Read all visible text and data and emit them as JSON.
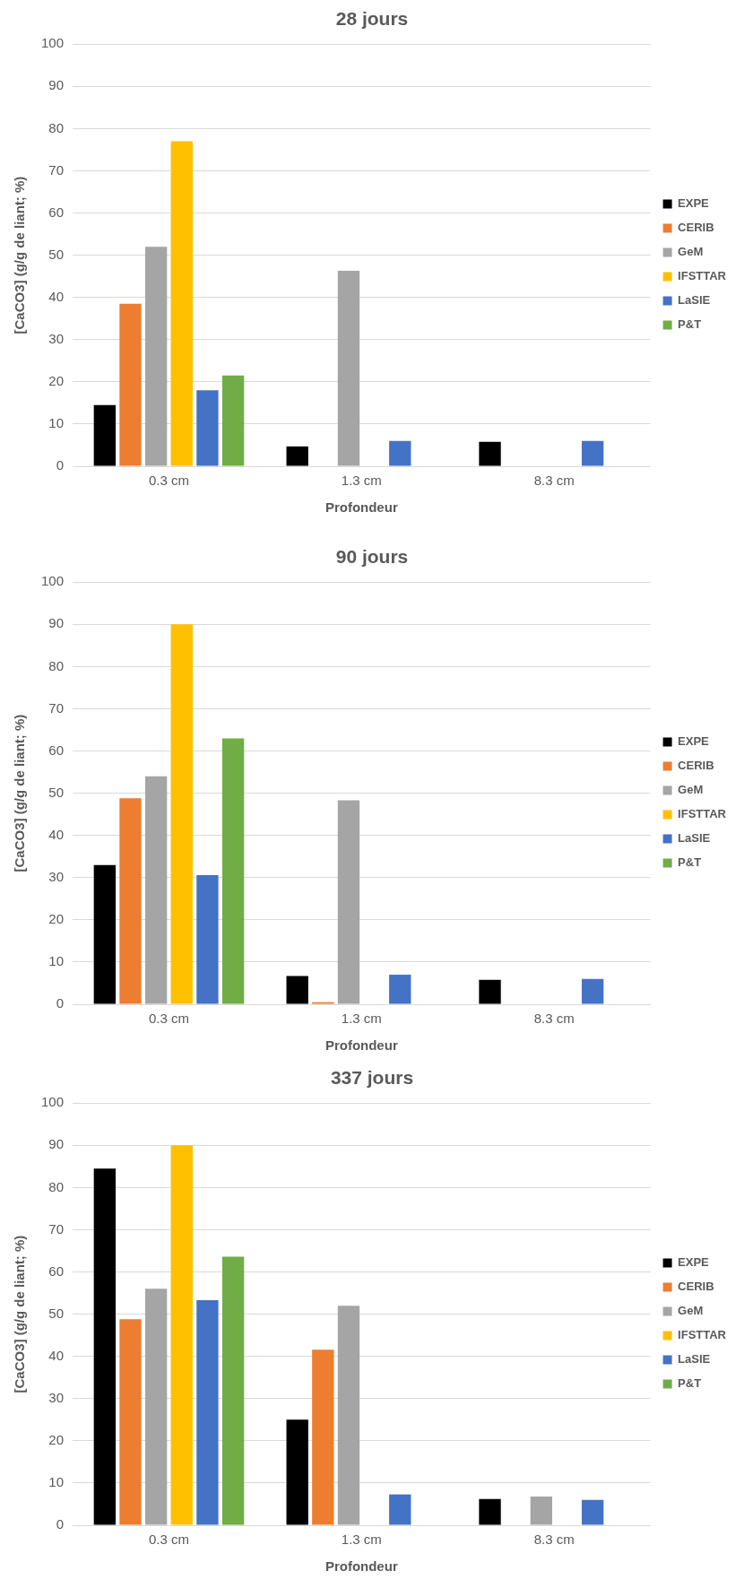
{
  "chart_data": [
    {
      "type": "bar",
      "title": "28 jours",
      "xlabel": "Profondeur",
      "ylabel": "[CaCO3] (g/g de liant; %)",
      "categories": [
        "0.3 cm",
        "1.3 cm",
        "8.3 cm"
      ],
      "ylim": [
        0,
        100
      ],
      "yticks": [
        0,
        10,
        20,
        30,
        40,
        50,
        60,
        70,
        80,
        90,
        100
      ],
      "grid": "y",
      "legend": "right",
      "series": [
        {
          "name": "EXPE",
          "color": "#000000",
          "values": [
            14.5,
            4.7,
            5.8
          ]
        },
        {
          "name": "CERIB",
          "color": "#ed7d31",
          "values": [
            38.5,
            null,
            null
          ]
        },
        {
          "name": "GeM",
          "color": "#a5a5a5",
          "values": [
            52,
            46.3,
            null
          ]
        },
        {
          "name": "IFSTTAR",
          "color": "#ffc000",
          "values": [
            77,
            null,
            null
          ]
        },
        {
          "name": "LaSIE",
          "color": "#4472c4",
          "values": [
            18,
            6,
            6
          ]
        },
        {
          "name": "P&T",
          "color": "#70ad47",
          "values": [
            21.5,
            null,
            null
          ]
        }
      ]
    },
    {
      "type": "bar",
      "title": "90 jours",
      "xlabel": "Profondeur",
      "ylabel": "[CaCO3] (g/g de liant; %)",
      "categories": [
        "0.3 cm",
        "1.3 cm",
        "8.3 cm"
      ],
      "ylim": [
        0,
        100
      ],
      "yticks": [
        0,
        10,
        20,
        30,
        40,
        50,
        60,
        70,
        80,
        90,
        100
      ],
      "grid": "y",
      "legend": "right",
      "series": [
        {
          "name": "EXPE",
          "color": "#000000",
          "values": [
            33,
            6.7,
            5.8
          ]
        },
        {
          "name": "CERIB",
          "color": "#ed7d31",
          "values": [
            48.8,
            0.5,
            null
          ]
        },
        {
          "name": "GeM",
          "color": "#a5a5a5",
          "values": [
            54,
            48.3,
            null
          ]
        },
        {
          "name": "IFSTTAR",
          "color": "#ffc000",
          "values": [
            90,
            null,
            null
          ]
        },
        {
          "name": "LaSIE",
          "color": "#4472c4",
          "values": [
            30.6,
            7,
            6
          ]
        },
        {
          "name": "P&T",
          "color": "#70ad47",
          "values": [
            63,
            null,
            null
          ]
        }
      ]
    },
    {
      "type": "bar",
      "title": "337 jours",
      "xlabel": "Profondeur",
      "ylabel": "[CaCO3] (g/g de liant; %)",
      "categories": [
        "0.3 cm",
        "1.3 cm",
        "8.3 cm"
      ],
      "ylim": [
        0,
        100
      ],
      "yticks": [
        0,
        10,
        20,
        30,
        40,
        50,
        60,
        70,
        80,
        90,
        100
      ],
      "grid": "y",
      "legend": "right",
      "series": [
        {
          "name": "EXPE",
          "color": "#000000",
          "values": [
            84.5,
            25,
            6.2
          ]
        },
        {
          "name": "CERIB",
          "color": "#ed7d31",
          "values": [
            48.8,
            41.6,
            null
          ]
        },
        {
          "name": "GeM",
          "color": "#a5a5a5",
          "values": [
            56,
            52,
            6.8
          ]
        },
        {
          "name": "IFSTTAR",
          "color": "#ffc000",
          "values": [
            90,
            null,
            null
          ]
        },
        {
          "name": "LaSIE",
          "color": "#4472c4",
          "values": [
            53.3,
            7.3,
            6
          ]
        },
        {
          "name": "P&T",
          "color": "#70ad47",
          "values": [
            63.6,
            null,
            null
          ]
        }
      ]
    }
  ]
}
